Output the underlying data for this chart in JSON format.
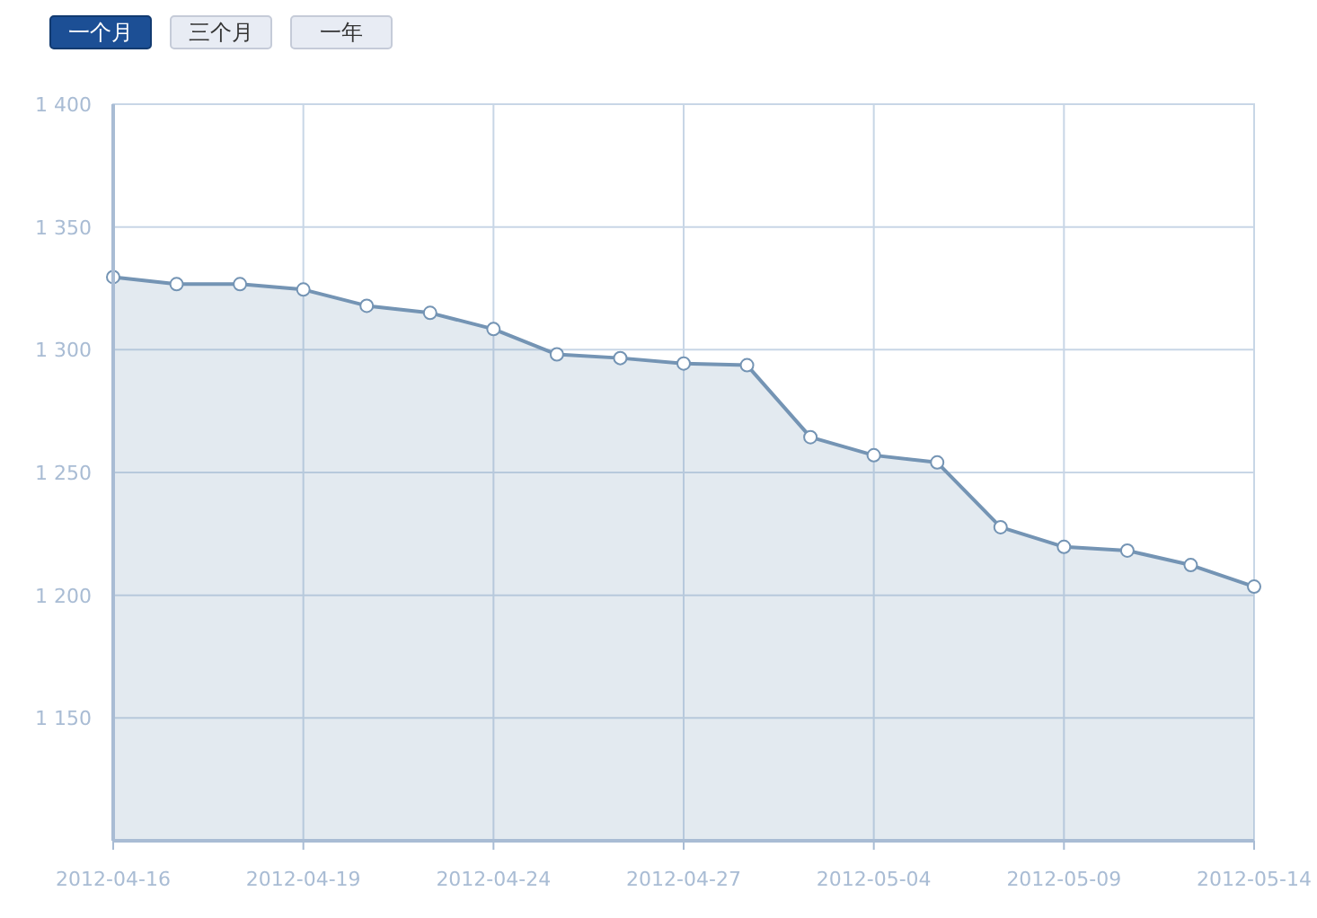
{
  "chart_data": {
    "type": "area",
    "annotations": [
      "一个月",
      "三个月",
      "一年"
    ],
    "categories": [
      "2012-04-16",
      null,
      null,
      "2012-04-19",
      null,
      null,
      "2012-04-24",
      null,
      null,
      "2012-04-27",
      null,
      null,
      "2012-05-04",
      null,
      null,
      "2012-05-09",
      null,
      null,
      "2012-05-14"
    ],
    "series": [
      {
        "color": "#7494b4",
        "values": [
          1329.6,
          1326.7,
          1326.7,
          1324.5,
          1317.9,
          1315,
          1308.4,
          1298.1,
          1296.6,
          1294.4,
          1293.7,
          1264.4,
          1257,
          1254.1,
          1227.7,
          1219.7,
          1218.2,
          1212.3,
          1203.5
        ]
      }
    ],
    "ylim": [
      1100,
      1400
    ],
    "yticks": [
      {
        "value": 1150,
        "label": "1 150"
      },
      {
        "value": 1200,
        "label": "1 200"
      },
      {
        "value": 1250,
        "label": "1 250"
      },
      {
        "value": 1300,
        "label": "1 300"
      },
      {
        "value": 1350,
        "label": "1 350"
      },
      {
        "value": 1400,
        "label": "1 400"
      }
    ],
    "grid": true,
    "marker": "circle"
  }
}
